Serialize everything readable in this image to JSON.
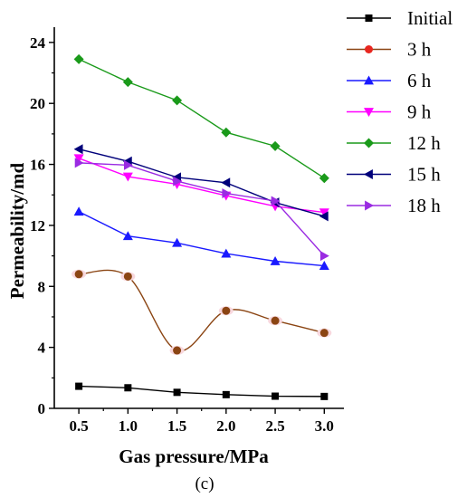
{
  "chart_data": {
    "type": "line",
    "xlabel": "Gas pressure/MPa",
    "ylabel": "Permeability/md",
    "caption": "(c)",
    "xlim": [
      0.25,
      3.2
    ],
    "ylim": [
      0,
      25
    ],
    "xticks": [
      0.5,
      1.0,
      1.5,
      2.0,
      2.5,
      3.0
    ],
    "xtick_labels": [
      "0.5",
      "1.0",
      "1.5",
      "2.0",
      "2.5",
      "3.0"
    ],
    "yticks": [
      0,
      4,
      8,
      12,
      16,
      20,
      24
    ],
    "ytick_labels": [
      "0",
      "4",
      "8",
      "12",
      "16",
      "20",
      "24"
    ],
    "grid": false,
    "legend_position": "top-right",
    "series": [
      {
        "name": "Initial",
        "x": [
          0.5,
          1.0,
          1.5,
          2.0,
          2.5,
          3.0
        ],
        "values": [
          1.45,
          1.35,
          1.05,
          0.9,
          0.8,
          0.78
        ],
        "color": "#000000",
        "marker": "square",
        "line_color": "#000000"
      },
      {
        "name": "3 h",
        "x": [
          0.5,
          1.0,
          1.5,
          2.0,
          2.5,
          3.0
        ],
        "values": [
          8.8,
          8.65,
          3.8,
          6.4,
          5.75,
          4.95
        ],
        "color": "#e8261f",
        "marker": "circle",
        "line_color": "#8b4513",
        "smooth": true
      },
      {
        "name": "6 h",
        "x": [
          0.5,
          1.0,
          1.5,
          2.0,
          2.5,
          3.0
        ],
        "values": [
          12.9,
          11.3,
          10.85,
          10.15,
          9.65,
          9.35
        ],
        "color": "#1a1aff",
        "marker": "triangle-up",
        "line_color": "#1a1aff"
      },
      {
        "name": "9 h",
        "x": [
          0.5,
          1.0,
          1.5,
          2.0,
          2.5,
          3.0
        ],
        "values": [
          16.4,
          15.2,
          14.7,
          13.95,
          13.25,
          12.85
        ],
        "color": "#ff00ff",
        "marker": "triangle-down",
        "line_color": "#ff00ff"
      },
      {
        "name": "12 h",
        "x": [
          0.5,
          1.0,
          1.5,
          2.0,
          2.5,
          3.0
        ],
        "values": [
          22.9,
          21.4,
          20.2,
          18.1,
          17.2,
          15.1
        ],
        "color": "#1a9a1a",
        "marker": "diamond",
        "line_color": "#1a9a1a"
      },
      {
        "name": "15 h",
        "x": [
          0.5,
          1.0,
          1.5,
          2.0,
          2.5,
          3.0
        ],
        "values": [
          17.0,
          16.2,
          15.15,
          14.8,
          13.5,
          12.6
        ],
        "color": "#00007a",
        "marker": "triangle-left",
        "line_color": "#00007a"
      },
      {
        "name": "18 h",
        "x": [
          0.5,
          1.0,
          1.5,
          2.0,
          2.5,
          3.0
        ],
        "values": [
          16.1,
          15.95,
          14.9,
          14.1,
          13.6,
          10.0
        ],
        "color": "#9a2be2",
        "marker": "triangle-right",
        "line_color": "#9a2be2"
      }
    ]
  }
}
